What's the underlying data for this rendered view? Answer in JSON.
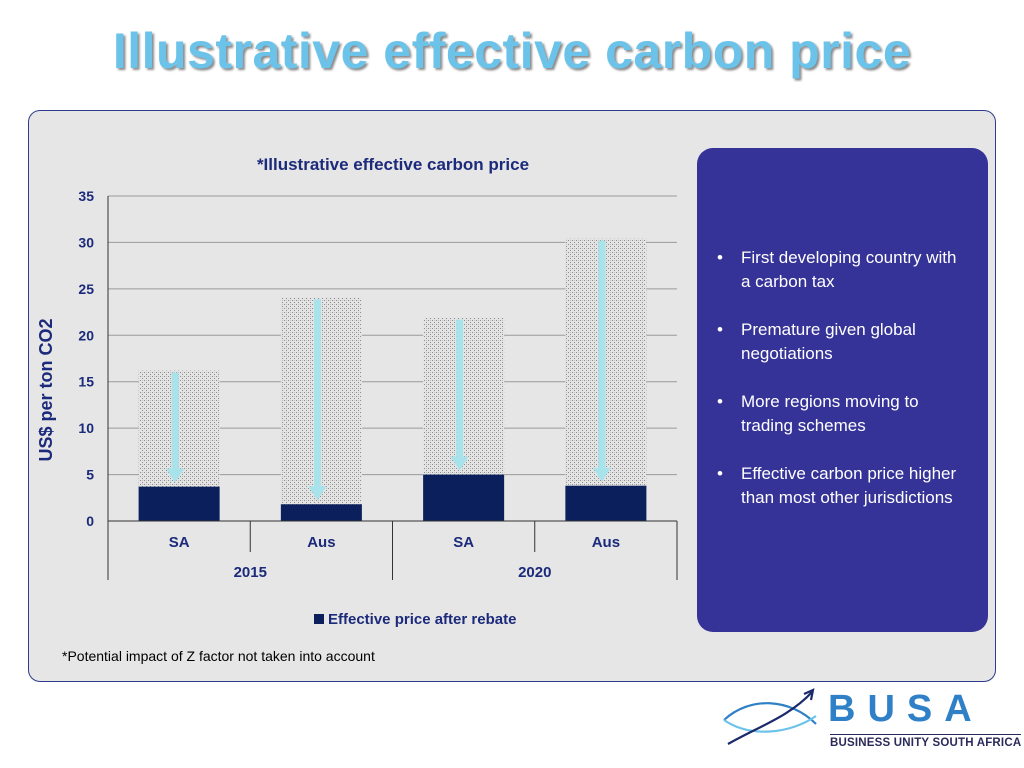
{
  "slide": {
    "title": "Illustrative effective carbon price",
    "footnote": "*Potential impact of Z factor not taken into account"
  },
  "chart_data": {
    "type": "bar",
    "title": "*Illustrative effective carbon price",
    "ylabel": "US$ per ton CO2",
    "ylim": [
      0,
      35
    ],
    "yticks": [
      0,
      5,
      10,
      15,
      20,
      25,
      30,
      35
    ],
    "grid": true,
    "legend_position": "bottom",
    "groups": [
      {
        "label": "2015",
        "categories": [
          "SA",
          "Aus"
        ]
      },
      {
        "label": "2020",
        "categories": [
          "SA",
          "Aus"
        ]
      }
    ],
    "categories": [
      "SA",
      "Aus",
      "SA",
      "Aus"
    ],
    "series": [
      {
        "name": "Effective price after rebate",
        "values": [
          3.7,
          1.8,
          5.0,
          3.8
        ],
        "color": "#0a1f5c"
      },
      {
        "values": [
          16.2,
          24.1,
          21.9,
          30.4
        ],
        "pattern": "stippled-grey"
      }
    ],
    "arrow_color": "#a8e3ec"
  },
  "bullets": [
    "First developing country with a carbon tax",
    "Premature given global negotiations",
    "More regions moving to trading schemes",
    "Effective carbon price higher than most other jurisdictions"
  ],
  "bullet_symbol": "•",
  "logo": {
    "name": "BUSA",
    "subtitle": "BUSINESS UNITY SOUTH AFRICA",
    "color": "#2f80c6"
  }
}
